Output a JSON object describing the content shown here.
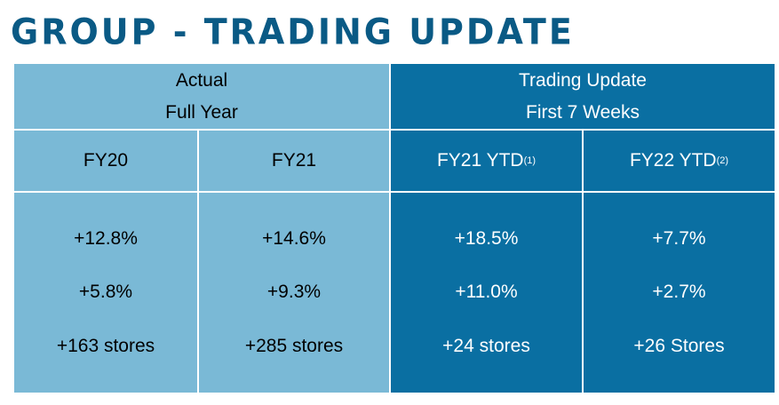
{
  "title": "GROUP - TRADING UPDATE",
  "groups": [
    {
      "line1": "Actual",
      "line2": "Full Year"
    },
    {
      "line1": "Trading Update",
      "line2": "First 7 Weeks"
    }
  ],
  "columns": [
    {
      "label": "FY20",
      "sup": "",
      "values": [
        "+12.8%",
        "+5.8%",
        "+163 stores"
      ]
    },
    {
      "label": "FY21",
      "sup": "",
      "values": [
        "+14.6%",
        "+9.3%",
        "+285 stores"
      ]
    },
    {
      "label": "FY21 YTD",
      "sup": "(1)",
      "values": [
        "+18.5%",
        "+11.0%",
        "+24 stores"
      ]
    },
    {
      "label": "FY22 YTD",
      "sup": "(2)",
      "values": [
        "+7.7%",
        "+2.7%",
        "+26 Stores"
      ]
    }
  ],
  "colors": {
    "light": "#7ab9d6",
    "dark": "#0a6fa2",
    "title": "#0a5a85"
  }
}
